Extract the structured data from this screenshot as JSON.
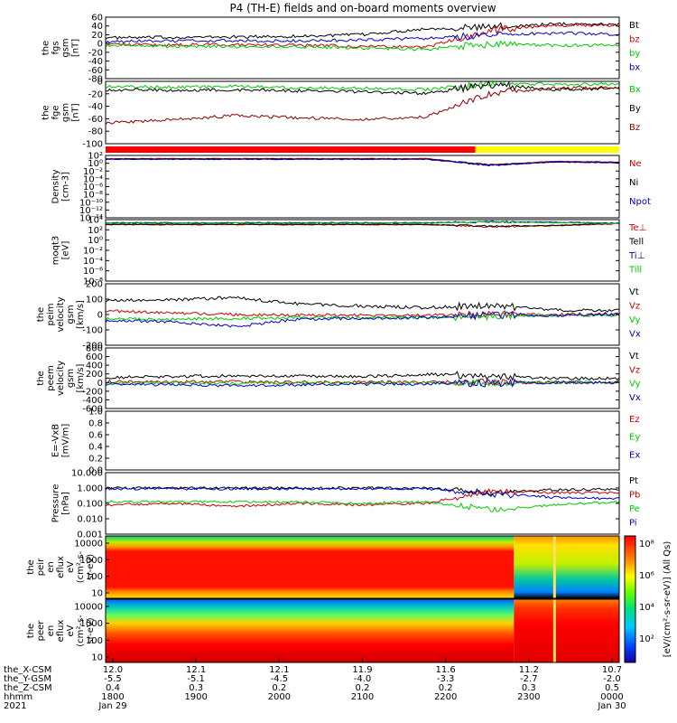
{
  "title": "P4 (TH-E) fields and on-board moments overview",
  "chart_data": {
    "type": "line",
    "xaxis": {
      "row_labels": [
        "the_X-CSM",
        "the_Y-GSM",
        "the_Z-CSM",
        "hhmm",
        "2021"
      ],
      "columns": [
        {
          "x": "12.0",
          "y": "-5.5",
          "z": "0.4",
          "hhmm": "1800",
          "date": "Jan 29"
        },
        {
          "x": "12.1",
          "y": "-5.1",
          "z": "0.3",
          "hhmm": "1900",
          "date": ""
        },
        {
          "x": "12.1",
          "y": "-4.5",
          "z": "0.2",
          "hhmm": "2000",
          "date": ""
        },
        {
          "x": "11.9",
          "y": "-4.0",
          "z": "0.2",
          "hhmm": "2100",
          "date": ""
        },
        {
          "x": "11.6",
          "y": "-3.3",
          "z": "0.2",
          "hhmm": "2200",
          "date": ""
        },
        {
          "x": "11.2",
          "y": "-2.7",
          "z": "0.3",
          "hhmm": "2300",
          "date": ""
        },
        {
          "x": "10.7",
          "y": "-2.0",
          "z": "0.5",
          "hhmm": "0000",
          "date": "Jan 30"
        }
      ]
    },
    "panels": [
      {
        "id": "fgs",
        "ylabel": [
          "the",
          "fgs",
          "gsm",
          "[nT]"
        ],
        "ticks": [
          "60",
          "40",
          "20",
          "0",
          "-20",
          "-40",
          "-60",
          "-80"
        ],
        "ylim": [
          -90,
          65
        ],
        "series": [
          {
            "name": "Bt",
            "color": "#000000",
            "values": [
              13,
              14,
              15,
              17,
              21,
              36,
              40,
              48,
              47
            ]
          },
          {
            "name": "bz",
            "color": "#cc0000",
            "values": [
              -3,
              -5,
              -4,
              -6,
              -8,
              -10,
              32,
              45,
              44
            ]
          },
          {
            "name": "by",
            "color": "#00cc00",
            "values": [
              -7,
              -8,
              -9,
              -10,
              -12,
              -16,
              -2,
              -6,
              -5
            ]
          },
          {
            "name": "bx",
            "color": "#0000cc",
            "values": [
              3,
              5,
              6,
              5,
              7,
              12,
              20,
              25,
              22
            ]
          }
        ]
      },
      {
        "id": "fge",
        "ylabel": [
          "the",
          "fge",
          "gsm",
          "[nT]"
        ],
        "ticks": [
          "0",
          "-20",
          "-40",
          "-60",
          "-80",
          "-100"
        ],
        "ylim": [
          -112,
          8
        ],
        "series": [
          {
            "name": "Bx",
            "color": "#00cc00",
            "values": [
              -2,
              -3,
              -2,
              -4,
              -5,
              -8,
              5,
              2,
              3
            ]
          },
          {
            "name": "By",
            "color": "#000000",
            "values": [
              -8,
              -9,
              -8,
              -10,
              -12,
              -15,
              2,
              -8,
              -5
            ]
          },
          {
            "name": "Bz",
            "color": "#8b0000",
            "values": [
              -72,
              -66,
              -58,
              -62,
              -65,
              -60,
              -15,
              -5,
              -4
            ]
          }
        ]
      },
      {
        "id": "density",
        "ylabel": [
          "Density",
          "[cm-3]"
        ],
        "ticks": [
          "10²",
          "10⁰",
          "10⁻²",
          "10⁻⁴",
          "10⁻⁶",
          "10⁻⁸",
          "10⁻¹⁰",
          "10⁻¹²",
          "10⁻¹⁴"
        ],
        "ylim": [
          -14,
          2
        ],
        "log": true,
        "series": [
          {
            "name": "Ne",
            "color": "#cc0000",
            "values": [
              1.2,
              1.2,
              1.2,
              1.2,
              1.2,
              1.2,
              -0.4,
              0.5,
              0.3
            ]
          },
          {
            "name": "Ni",
            "color": "#000000",
            "values": [
              1.1,
              1.1,
              1.1,
              1.1,
              1.1,
              1.1,
              -0.5,
              0.4,
              0.2
            ]
          },
          {
            "name": "Npot",
            "color": "#0000cc",
            "values": [
              1.0,
              1.0,
              1.0,
              1.0,
              1.0,
              1.0,
              -0.6,
              0.3,
              0.1
            ]
          }
        ]
      },
      {
        "id": "temp",
        "ylabel": [
          "moqt3",
          "[eV]"
        ],
        "ticks": [
          "10⁴",
          "10²",
          "10⁰",
          "10⁻²",
          "10⁻⁴",
          "10⁻⁶",
          "10⁻⁸"
        ],
        "ylim": [
          -8,
          4
        ],
        "log": true,
        "series": [
          {
            "name": "Te⊥",
            "color": "#cc0000",
            "values": [
              3.0,
              3.0,
              3.0,
              3.0,
              3.0,
              3.0,
              2.6,
              2.8,
              3.2
            ]
          },
          {
            "name": "Tell",
            "color": "#000000",
            "values": [
              3.1,
              3.1,
              3.1,
              3.1,
              3.1,
              3.1,
              2.7,
              2.9,
              3.3
            ]
          },
          {
            "name": "Ti⊥",
            "color": "#0000cc",
            "values": [
              3.4,
              3.4,
              3.4,
              3.4,
              3.4,
              3.4,
              3.6,
              3.5,
              3.3
            ]
          },
          {
            "name": "Till",
            "color": "#00cc00",
            "values": [
              3.3,
              3.3,
              3.3,
              3.3,
              3.3,
              3.3,
              3.5,
              3.4,
              3.2
            ]
          }
        ]
      },
      {
        "id": "peim",
        "ylabel": [
          "the",
          "peim",
          "velocity",
          "gsm",
          "[km/s]"
        ],
        "ticks": [
          "200",
          "100",
          "0",
          "-100",
          "-200"
        ],
        "ylim": [
          -200,
          200
        ],
        "series": [
          {
            "name": "Vt",
            "color": "#000000",
            "values": [
              90,
              95,
              110,
              70,
              55,
              45,
              60,
              30,
              25
            ]
          },
          {
            "name": "Vz",
            "color": "#cc0000",
            "values": [
              25,
              10,
              0,
              -5,
              -5,
              -5,
              0,
              0,
              5
            ]
          },
          {
            "name": "Vy",
            "color": "#00cc00",
            "values": [
              -30,
              -30,
              -25,
              -20,
              -20,
              -20,
              -10,
              -5,
              -5
            ]
          },
          {
            "name": "Vx",
            "color": "#0000cc",
            "values": [
              -40,
              -45,
              -80,
              -30,
              -25,
              -20,
              -5,
              -5,
              0
            ]
          }
        ]
      },
      {
        "id": "peem",
        "ylabel": [
          "the",
          "peem",
          "velocity",
          "gsm",
          "[km/s]"
        ],
        "ticks": [
          "800",
          "600",
          "400",
          "200",
          "0",
          "-200",
          "-400",
          "-600"
        ],
        "ylim": [
          -650,
          850
        ],
        "series": [
          {
            "name": "Vt",
            "color": "#000000",
            "values": [
              120,
              140,
              160,
              150,
              140,
              200,
              150,
              100,
              90
            ]
          },
          {
            "name": "Vz",
            "color": "#cc0000",
            "values": [
              20,
              10,
              10,
              0,
              0,
              10,
              0,
              0,
              0
            ]
          },
          {
            "name": "Vy",
            "color": "#00cc00",
            "values": [
              -20,
              -20,
              -20,
              -20,
              -20,
              -10,
              -10,
              0,
              0
            ]
          },
          {
            "name": "Vx",
            "color": "#0000cc",
            "values": [
              -50,
              -60,
              -80,
              -60,
              -50,
              -40,
              -20,
              -10,
              -10
            ]
          }
        ]
      },
      {
        "id": "efield",
        "ylabel": [
          "E=-VxB",
          "[mV/m]"
        ],
        "ticks": [
          "1.0",
          "0.8",
          "0.6",
          "0.4",
          "0.2",
          "0.0"
        ],
        "ylim": [
          0,
          1
        ],
        "series": [
          {
            "name": "Ez",
            "color": "#cc0000",
            "values": []
          },
          {
            "name": "Ey",
            "color": "#00cc00",
            "values": []
          },
          {
            "name": "Ex",
            "color": "#0000cc",
            "values": []
          }
        ]
      },
      {
        "id": "pressure",
        "ylabel": [
          "Pressure",
          "[nPa]"
        ],
        "ticks": [
          "10.000",
          "1.000",
          "0.100",
          "0.010",
          "0.001"
        ],
        "ylim": [
          -3,
          1
        ],
        "log": true,
        "series": [
          {
            "name": "Pt",
            "color": "#000000",
            "values": [
              0.0,
              0.0,
              0.0,
              0.0,
              0.0,
              0.0,
              -0.3,
              -0.1,
              -0.1
            ]
          },
          {
            "name": "Pb",
            "color": "#cc0000",
            "values": [
              -1.1,
              -1.0,
              -1.2,
              -1.0,
              -1.1,
              -1.0,
              -0.2,
              -0.3,
              -0.3
            ]
          },
          {
            "name": "Pe",
            "color": "#00cc00",
            "values": [
              -0.9,
              -0.9,
              -0.9,
              -0.9,
              -1.0,
              -0.9,
              -1.4,
              -1.1,
              -0.9
            ]
          },
          {
            "name": "Pi",
            "color": "#0000cc",
            "values": [
              -0.05,
              -0.05,
              -0.05,
              -0.05,
              -0.05,
              -0.05,
              -0.4,
              -0.6,
              -0.7
            ]
          }
        ]
      }
    ],
    "spectrograms": [
      {
        "id": "peir",
        "ylabel": [
          "the",
          "peir",
          "en",
          "eflux",
          "eV",
          "(cm²-s-",
          "sr-eV)"
        ],
        "ticks": [
          "10000",
          "1000",
          "100",
          "10"
        ]
      },
      {
        "id": "peer",
        "ylabel": [
          "the",
          "peer",
          "en",
          "eflux",
          "eV",
          "(cm²-s-",
          "sr-eV)"
        ],
        "ticks": [
          "10000",
          "1000",
          "100",
          "10"
        ]
      }
    ],
    "colorbar": {
      "label": "[eV/(cm²-s-sr-eV)] (All Qs)",
      "ticks": [
        "10⁸",
        "10⁶",
        "10⁴",
        "10²"
      ]
    },
    "mode_bar": {
      "red_until_fraction": 0.72,
      "red": "#ff0000",
      "yellow": "#ffff00"
    }
  }
}
